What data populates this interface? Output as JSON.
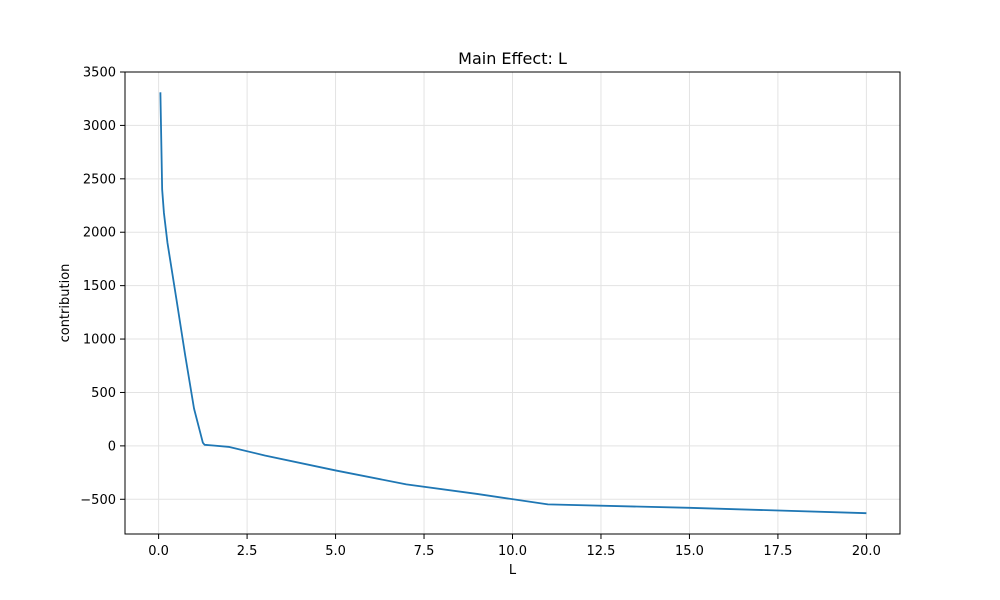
{
  "chart_data": {
    "type": "line",
    "title": "Main Effect: L",
    "xlabel": "L",
    "ylabel": "contribution",
    "xlim": [
      -0.95,
      20.95
    ],
    "ylim": [
      -825,
      3500
    ],
    "xticks": [
      0.0,
      2.5,
      5.0,
      7.5,
      10.0,
      12.5,
      15.0,
      17.5,
      20.0
    ],
    "xtick_labels": [
      "0.0",
      "2.5",
      "5.0",
      "7.5",
      "10.0",
      "12.5",
      "15.0",
      "17.5",
      "20.0"
    ],
    "yticks": [
      -500,
      0,
      500,
      1000,
      1500,
      2000,
      2500,
      3000,
      3500
    ],
    "ytick_labels": [
      "−500",
      "0",
      "500",
      "1000",
      "1500",
      "2000",
      "2500",
      "3000",
      "3500"
    ],
    "grid": true,
    "series": [
      {
        "color": "#1f77b4",
        "x": [
          0.05,
          0.1,
          0.15,
          0.25,
          0.5,
          0.75,
          1.0,
          1.25,
          1.3,
          1.5,
          2.0,
          3.0,
          5.0,
          7.0,
          9.0,
          11.0,
          15.0,
          20.0
        ],
        "y": [
          3310,
          2400,
          2180,
          1900,
          1380,
          850,
          350,
          30,
          10,
          5,
          -10,
          -90,
          -230,
          -360,
          -450,
          -548,
          -580,
          -630
        ]
      }
    ]
  }
}
